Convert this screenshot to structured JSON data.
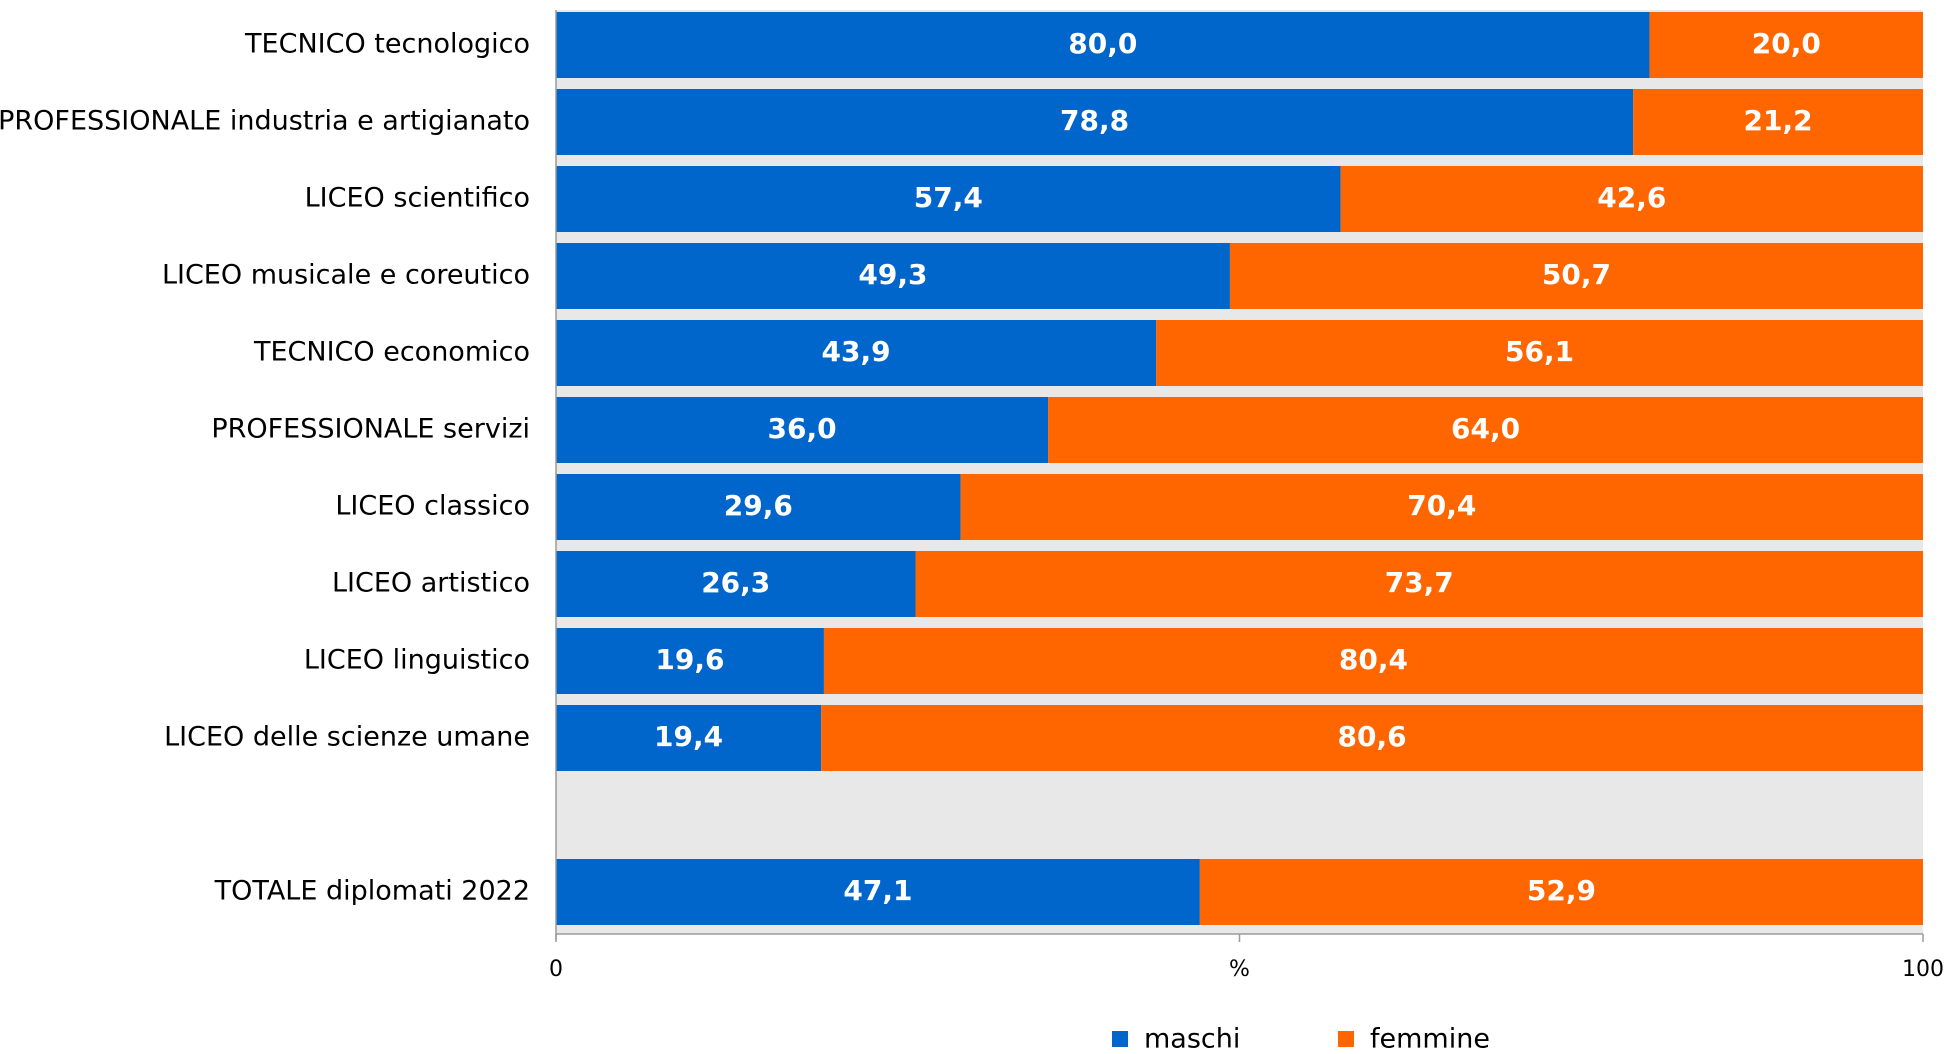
{
  "chart_data": {
    "type": "bar",
    "orientation": "horizontal",
    "stacked": true,
    "categories": [
      "TECNICO tecnologico",
      "PROFESSIONALE industria e artigianato",
      "LICEO scientifico",
      "LICEO musicale e coreutico",
      "TECNICO economico",
      "PROFESSIONALE servizi",
      "LICEO classico",
      "LICEO artistico",
      "LICEO linguistico",
      "LICEO delle scienze umane",
      "",
      "TOTALE diplomati 2022"
    ],
    "series": [
      {
        "name": "maschi",
        "color": "#0066CC",
        "values": [
          80.0,
          78.8,
          57.4,
          49.3,
          43.9,
          36.0,
          29.6,
          26.3,
          19.6,
          19.4,
          null,
          47.1
        ],
        "labels": [
          "80,0",
          "78,8",
          "57,4",
          "49,3",
          "43,9",
          "36,0",
          "29,6",
          "26,3",
          "19,6",
          "19,4",
          "",
          "47,1"
        ]
      },
      {
        "name": "femmine",
        "color": "#FF6600",
        "values": [
          20.0,
          21.2,
          42.6,
          50.7,
          56.1,
          64.0,
          70.4,
          73.7,
          80.4,
          80.6,
          null,
          52.9
        ],
        "labels": [
          "20,0",
          "21,2",
          "42,6",
          "50,7",
          "56,1",
          "64,0",
          "70,4",
          "73,7",
          "80,4",
          "80,6",
          "",
          "52,9"
        ]
      }
    ],
    "xlim": [
      0,
      100
    ],
    "xticks": [
      "0",
      "%",
      "100"
    ],
    "xlabel": "",
    "ylabel": "",
    "title": "",
    "plot_background": "#E8E8E8",
    "legend_position": "bottom-center"
  }
}
